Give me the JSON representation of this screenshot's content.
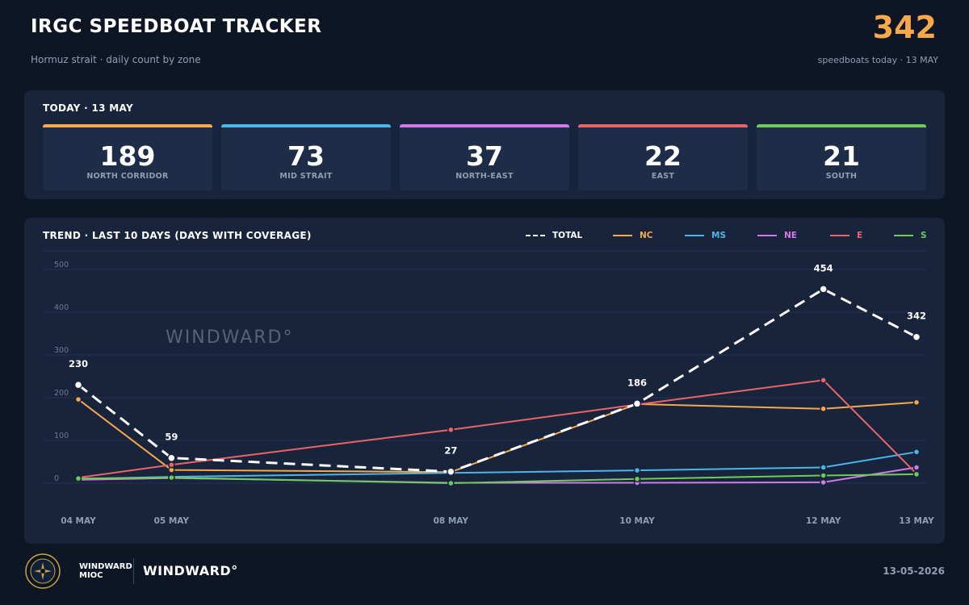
{
  "header": {
    "title": "IRGC SPEEDBOAT TRACKER",
    "subtitle": "Hormuz strait  ·  daily count by zone",
    "big_value": "342",
    "big_label": "speedboats today  ·  13 MAY",
    "accent": "#f6a84a"
  },
  "today": {
    "title": "TODAY  ·  13 MAY",
    "zones": [
      {
        "value": "189",
        "label": "NORTH CORRIDOR",
        "color": "#f6a84a"
      },
      {
        "value": "73",
        "label": "MID STRAIT",
        "color": "#4fb4ea"
      },
      {
        "value": "37",
        "label": "NORTH-EAST",
        "color": "#d07ae8"
      },
      {
        "value": "22",
        "label": "EAST",
        "color": "#ea6468"
      },
      {
        "value": "21",
        "label": "SOUTH",
        "color": "#6fcc5a"
      }
    ]
  },
  "trend": {
    "title": "TREND  ·  LAST 10 DAYS  (DAYS WITH COVERAGE)",
    "watermark": "WINDWARD°",
    "legend": [
      {
        "label": "TOTAL",
        "color": "#ffffff",
        "dashed": true
      },
      {
        "label": "NC",
        "color": "#f6a84a",
        "dashed": false
      },
      {
        "label": "MS",
        "color": "#4fb4ea",
        "dashed": false
      },
      {
        "label": "NE",
        "color": "#d07ae8",
        "dashed": false
      },
      {
        "label": "E",
        "color": "#ea6468",
        "dashed": false
      },
      {
        "label": "S",
        "color": "#6fcc5a",
        "dashed": false
      }
    ]
  },
  "chart_data": {
    "type": "line",
    "x": [
      "04 MAY",
      "05 MAY",
      "08 MAY",
      "10 MAY",
      "12 MAY",
      "13 MAY"
    ],
    "x_days": [
      4,
      5,
      8,
      10,
      12,
      13
    ],
    "ylim": [
      0,
      500
    ],
    "yticks": [
      0,
      100,
      200,
      300,
      400,
      500
    ],
    "grid": true,
    "legend_position": "top-right",
    "series": [
      {
        "name": "TOTAL",
        "color": "#ffffff",
        "dashed": true,
        "values": [
          230,
          59,
          27,
          186,
          454,
          342
        ],
        "labels": [
          "230",
          "59",
          "27",
          "186",
          "454",
          "342"
        ]
      },
      {
        "name": "NC",
        "color": "#f6a84a",
        "dashed": false,
        "values": [
          196,
          31,
          26,
          185,
          174,
          189
        ]
      },
      {
        "name": "MS",
        "color": "#4fb4ea",
        "dashed": false,
        "values": [
          10,
          15,
          24,
          30,
          37,
          73
        ]
      },
      {
        "name": "NE",
        "color": "#d07ae8",
        "dashed": false,
        "values": [
          8,
          12,
          1,
          1,
          2,
          37
        ]
      },
      {
        "name": "E",
        "color": "#ea6468",
        "dashed": false,
        "values": [
          13,
          43,
          125,
          184,
          241,
          22
        ]
      },
      {
        "name": "S",
        "color": "#6fcc5a",
        "dashed": false,
        "values": [
          11,
          13,
          0,
          10,
          18,
          21
        ]
      }
    ]
  },
  "footer": {
    "org_line1": "WINDWARD",
    "org_line2": "MIOC",
    "brand": "WINDWARD°",
    "date": "13-05-2026"
  }
}
